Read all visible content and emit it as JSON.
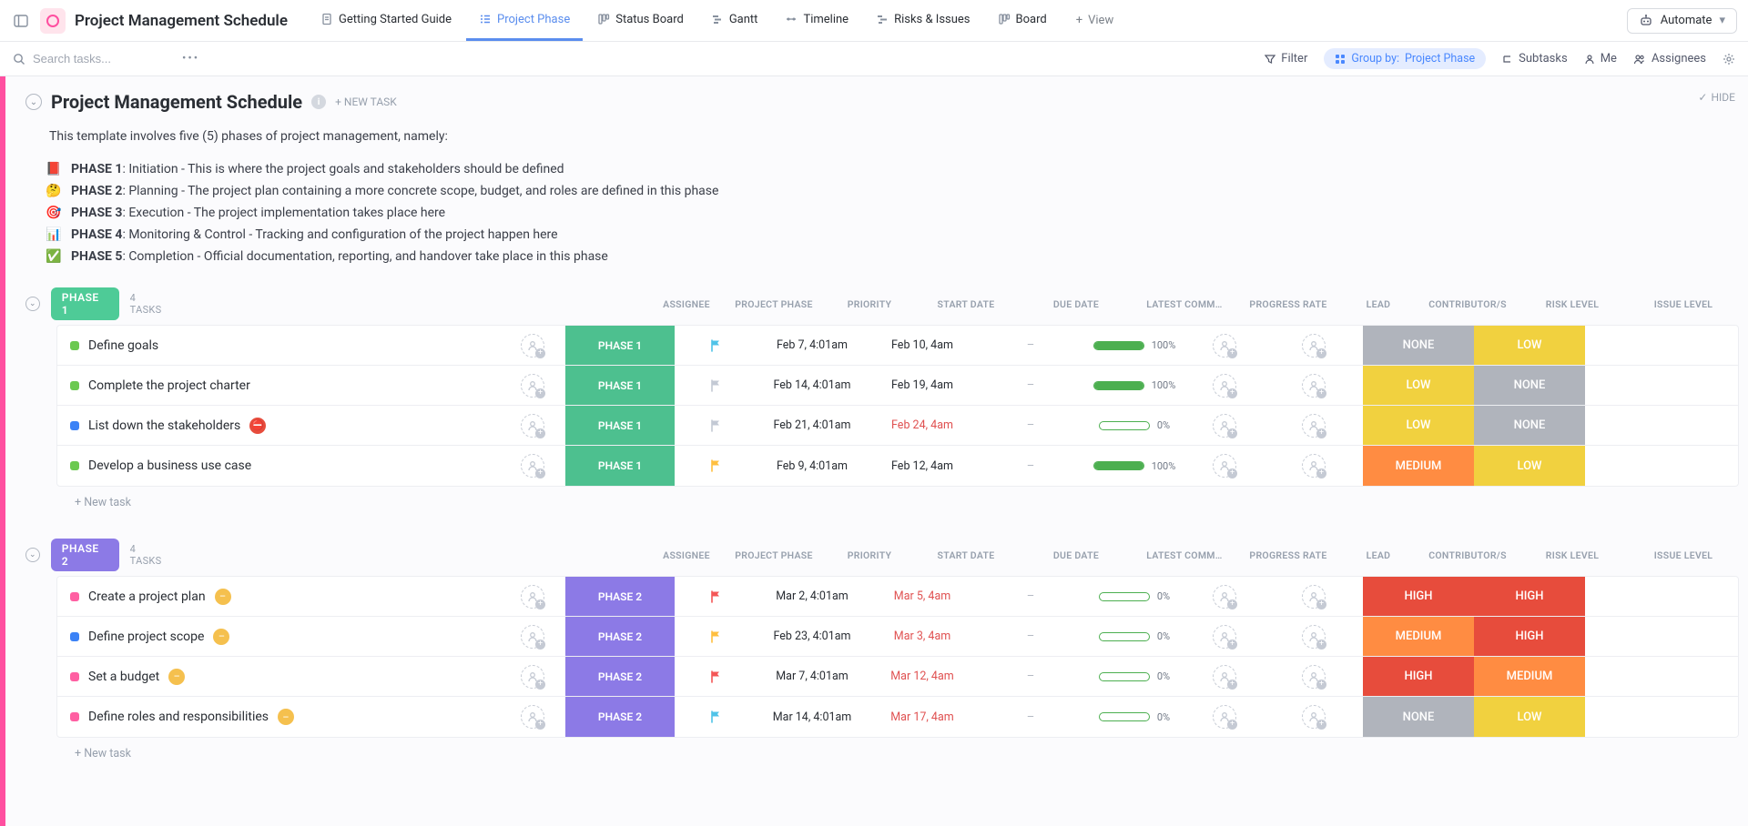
{
  "header": {
    "page_title": "Project Management Schedule",
    "views": [
      {
        "label": "Getting Started Guide",
        "icon": "doc",
        "active": false
      },
      {
        "label": "Project Phase",
        "icon": "list",
        "active": true
      },
      {
        "label": "Status Board",
        "icon": "board",
        "active": false
      },
      {
        "label": "Gantt",
        "icon": "gantt",
        "active": false
      },
      {
        "label": "Timeline",
        "icon": "timeline",
        "active": false
      },
      {
        "label": "Risks & Issues",
        "icon": "risk",
        "active": false
      },
      {
        "label": "Board",
        "icon": "board",
        "active": false
      }
    ],
    "add_view_label": "View",
    "automate_label": "Automate"
  },
  "toolbar": {
    "search_placeholder": "Search tasks...",
    "filter_label": "Filter",
    "groupby_prefix": "Group by:",
    "groupby_value": "Project Phase",
    "subtasks_label": "Subtasks",
    "me_label": "Me",
    "assignees_label": "Assignees"
  },
  "list_header": {
    "title": "Project Management Schedule",
    "new_task_label": "+ NEW TASK",
    "hide_label": "HIDE",
    "description": "This template involves five (5) phases of project management, namely:",
    "phases": [
      {
        "icon": "📕",
        "bold": "PHASE 1",
        "rest": ": Initiation - This is where the project goals and stakeholders should be defined"
      },
      {
        "icon": "🤔",
        "bold": "PHASE 2",
        "rest": ": Planning - The project plan containing a more concrete scope, budget, and roles are defined in this phase"
      },
      {
        "icon": "🎯",
        "bold": "PHASE 3",
        "rest": ": Execution - The project implementation takes place here"
      },
      {
        "icon": "📊",
        "bold": "PHASE 4",
        "rest": ": Monitoring & Control - Tracking and configuration of the project happen here"
      },
      {
        "icon": "✅",
        "bold": "PHASE 5",
        "rest": ": Completion - Official documentation, reporting, and handover take place in this phase"
      }
    ]
  },
  "columns": {
    "assignee": "ASSIGNEE",
    "phase": "PROJECT PHASE",
    "priority": "PRIORITY",
    "start": "START DATE",
    "due": "DUE DATE",
    "comment": "LATEST COMM…",
    "progress": "PROGRESS RATE",
    "lead": "LEAD",
    "contrib": "CONTRIBUTOR/S",
    "risk": "RISK LEVEL",
    "issue": "ISSUE LEVEL"
  },
  "palette": {
    "phase1_pill": "#4ecb97",
    "phase1_chip": "#4dc08f",
    "phase2_pill": "#8c7ae6",
    "phase2_chip": "#8c7ae6",
    "risk_none": "#b0b4bc",
    "risk_low": "#f1d13f",
    "risk_medium": "#ff8c42",
    "risk_high": "#e74c3c",
    "status_green": "#6bc950",
    "status_blue": "#3b82f6",
    "status_pink": "#ff5fa2",
    "flag_cyan": "#4fc3e8",
    "flag_gray": "#c3c9d4",
    "flag_yellow": "#ffbf3f",
    "flag_red": "#f45757",
    "due_normal": "#2a2e34",
    "due_overdue": "#e05252",
    "badge_red": "#e74c3c",
    "badge_yellow": "#f5c04e"
  },
  "groups": [
    {
      "name": "PHASE 1",
      "pill_color": "#4ecb97",
      "chip_color": "#4dc08f",
      "count": "4 TASKS",
      "new_task": "+ New task",
      "tasks": [
        {
          "status_color": "#6bc950",
          "name": "Define goals",
          "badge": null,
          "phase": "PHASE 1",
          "flag_color": "#4fc3e8",
          "start": "Feb 7, 4:01am",
          "due": "Feb 10, 4am",
          "due_color": "#2a2e34",
          "progress": 100,
          "risk": "NONE",
          "risk_color": "#b0b4bc",
          "issue": "LOW",
          "issue_color": "#f1d13f"
        },
        {
          "status_color": "#6bc950",
          "name": "Complete the project charter",
          "badge": null,
          "phase": "PHASE 1",
          "flag_color": "#c3c9d4",
          "start": "Feb 14, 4:01am",
          "due": "Feb 19, 4am",
          "due_color": "#2a2e34",
          "progress": 100,
          "risk": "LOW",
          "risk_color": "#f1d13f",
          "issue": "NONE",
          "issue_color": "#b0b4bc"
        },
        {
          "status_color": "#3b82f6",
          "name": "List down the stakeholders",
          "badge": {
            "icon": "⛔",
            "bg": "#e74c3c"
          },
          "phase": "PHASE 1",
          "flag_color": "#c3c9d4",
          "start": "Feb 21, 4:01am",
          "due": "Feb 24, 4am",
          "due_color": "#e05252",
          "progress": 0,
          "risk": "LOW",
          "risk_color": "#f1d13f",
          "issue": "NONE",
          "issue_color": "#b0b4bc"
        },
        {
          "status_color": "#6bc950",
          "name": "Develop a business use case",
          "badge": null,
          "phase": "PHASE 1",
          "flag_color": "#ffbf3f",
          "start": "Feb 9, 4:01am",
          "due": "Feb 12, 4am",
          "due_color": "#2a2e34",
          "progress": 100,
          "risk": "MEDIUM",
          "risk_color": "#ff8c42",
          "issue": "LOW",
          "issue_color": "#f1d13f"
        }
      ]
    },
    {
      "name": "PHASE 2",
      "pill_color": "#8c7ae6",
      "chip_color": "#8c7ae6",
      "count": "4 TASKS",
      "new_task": "+ New task",
      "tasks": [
        {
          "status_color": "#ff5fa2",
          "name": "Create a project plan",
          "badge": {
            "icon": "–",
            "bg": "#f5c04e"
          },
          "phase": "PHASE 2",
          "flag_color": "#f45757",
          "start": "Mar 2, 4:01am",
          "due": "Mar 5, 4am",
          "due_color": "#e05252",
          "progress": 0,
          "risk": "HIGH",
          "risk_color": "#e74c3c",
          "issue": "HIGH",
          "issue_color": "#e74c3c"
        },
        {
          "status_color": "#3b82f6",
          "name": "Define project scope",
          "badge": {
            "icon": "–",
            "bg": "#f5c04e"
          },
          "phase": "PHASE 2",
          "flag_color": "#ffbf3f",
          "start": "Feb 23, 4:01am",
          "due": "Mar 3, 4am",
          "due_color": "#e05252",
          "progress": 0,
          "risk": "MEDIUM",
          "risk_color": "#ff8c42",
          "issue": "HIGH",
          "issue_color": "#e74c3c"
        },
        {
          "status_color": "#ff5fa2",
          "name": "Set a budget",
          "badge": {
            "icon": "–",
            "bg": "#f5c04e"
          },
          "phase": "PHASE 2",
          "flag_color": "#f45757",
          "start": "Mar 7, 4:01am",
          "due": "Mar 12, 4am",
          "due_color": "#e05252",
          "progress": 0,
          "risk": "HIGH",
          "risk_color": "#e74c3c",
          "issue": "MEDIUM",
          "issue_color": "#ff8c42"
        },
        {
          "status_color": "#ff5fa2",
          "name": "Define roles and responsibilities",
          "badge": {
            "icon": "–",
            "bg": "#f5c04e"
          },
          "phase": "PHASE 2",
          "flag_color": "#4fc3e8",
          "start": "Mar 14, 4:01am",
          "due": "Mar 17, 4am",
          "due_color": "#e05252",
          "progress": 0,
          "risk": "NONE",
          "risk_color": "#b0b4bc",
          "issue": "LOW",
          "issue_color": "#f1d13f"
        }
      ]
    }
  ]
}
